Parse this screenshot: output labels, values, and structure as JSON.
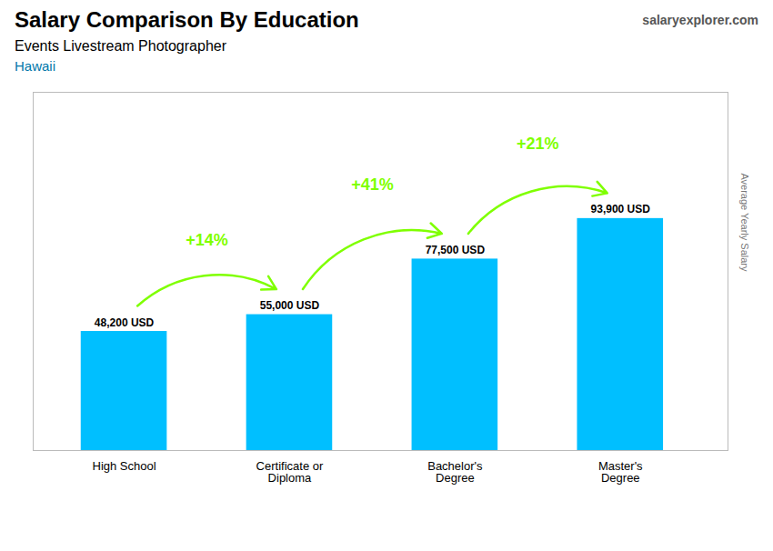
{
  "chart_data": {
    "type": "bar",
    "title": "Salary Comparison By Education",
    "subtitle": "Events Livestream Photographer",
    "location": "Hawaii",
    "source": "salaryexplorer.com",
    "ylabel": "Average Yearly Salary",
    "categories": [
      "High School",
      "Certificate or\nDiploma",
      "Bachelor's\nDegree",
      "Master's\nDegree"
    ],
    "values": [
      48200,
      55000,
      77500,
      93900
    ],
    "value_labels": [
      "48,200 USD",
      "55,000 USD",
      "77,500 USD",
      "93,900 USD"
    ],
    "data_labels": true,
    "color": "#00BFFF",
    "annotations": [
      {
        "text": "+14%",
        "color": "#7FFF00"
      },
      {
        "text": "+41%",
        "color": "#7FFF00"
      },
      {
        "text": "+21%",
        "color": "#7FFF00"
      }
    ],
    "ylim": [
      0,
      145000
    ],
    "tick_labels": "x",
    "grid": false
  }
}
